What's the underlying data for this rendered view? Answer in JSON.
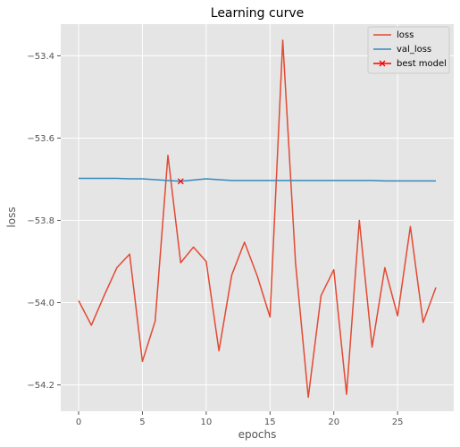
{
  "chart_data": {
    "type": "line",
    "title": "Learning curve",
    "xlabel": "epochs",
    "ylabel": "loss",
    "xlim": [
      -1.4,
      29.4
    ],
    "ylim": [
      -54.264,
      -53.323
    ],
    "xticks": [
      0,
      5,
      10,
      15,
      20,
      25
    ],
    "yticks": [
      -54.2,
      -54.0,
      -53.8,
      -53.6,
      -53.4
    ],
    "xtick_labels": [
      "0",
      "5",
      "10",
      "15",
      "20",
      "25"
    ],
    "ytick_labels": [
      "−54.2",
      "−54.0",
      "−53.8",
      "−53.6",
      "−53.4"
    ],
    "grid": true,
    "legend_position": "top-right",
    "x": [
      0,
      1,
      2,
      3,
      4,
      5,
      6,
      7,
      8,
      9,
      10,
      11,
      12,
      13,
      14,
      15,
      16,
      17,
      18,
      19,
      20,
      21,
      22,
      23,
      24,
      25,
      26,
      27,
      28
    ],
    "series": [
      {
        "name": "loss",
        "color": "#E24A33",
        "values": [
          -53.995,
          -54.055,
          -53.983,
          -53.915,
          -53.882,
          -54.143,
          -54.045,
          -53.642,
          -53.903,
          -53.865,
          -53.9,
          -54.117,
          -53.933,
          -53.853,
          -53.935,
          -54.035,
          -53.362,
          -53.903,
          -54.23,
          -53.983,
          -53.92,
          -54.223,
          -53.8,
          -54.108,
          -53.915,
          -54.032,
          -53.815,
          -54.048,
          -53.963
        ]
      },
      {
        "name": "val_loss",
        "color": "#348ABD",
        "values": [
          -53.698,
          -53.698,
          -53.698,
          -53.698,
          -53.699,
          -53.699,
          -53.701,
          -53.703,
          -53.705,
          -53.702,
          -53.699,
          -53.701,
          -53.703,
          -53.703,
          -53.703,
          -53.703,
          -53.703,
          -53.703,
          -53.703,
          -53.703,
          -53.703,
          -53.703,
          -53.703,
          -53.703,
          -53.704,
          -53.704,
          -53.704,
          -53.704,
          -53.704
        ]
      }
    ],
    "best_model": {
      "name": "best model",
      "color": "#FF0000",
      "x": 8,
      "y": -53.705
    }
  }
}
